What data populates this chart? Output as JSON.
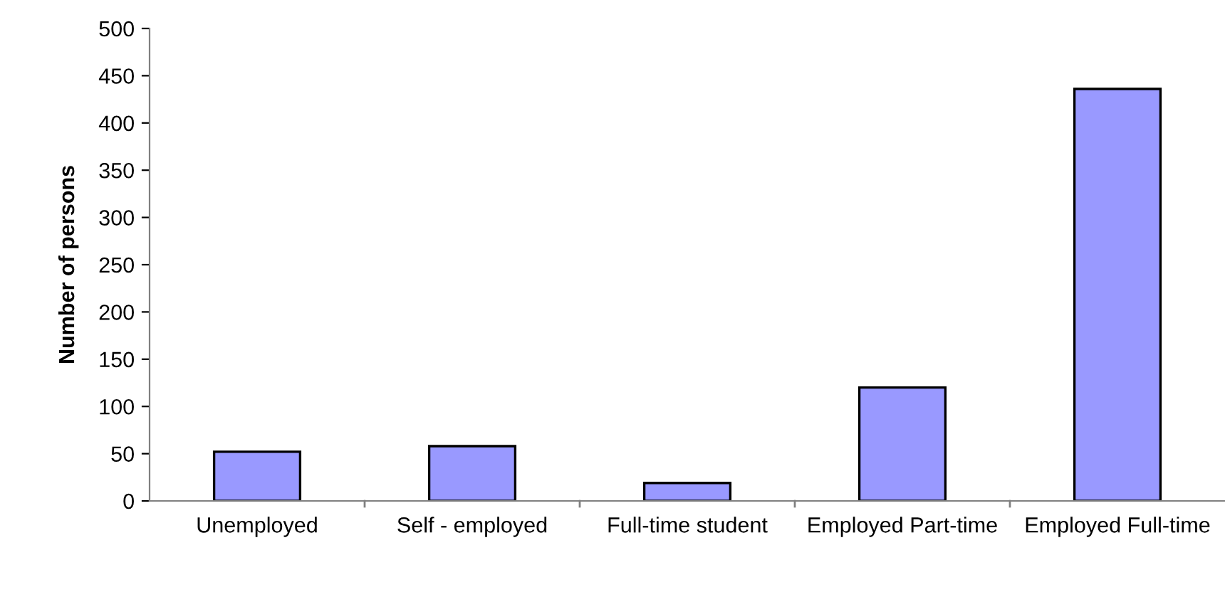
{
  "chart_data": {
    "type": "bar",
    "ylabel": "Number of persons",
    "categories": [
      "Unemployed",
      "Self - employed",
      "Full-time student",
      "Employed Part-time",
      "Employed Full-time"
    ],
    "values": [
      52,
      58,
      19,
      120,
      436
    ],
    "color": "#9999ff",
    "ylim": [
      0,
      500
    ],
    "yticks": [
      0,
      50,
      100,
      150,
      200,
      250,
      300,
      350,
      400,
      450,
      500
    ],
    "grid": false,
    "legend": false
  }
}
